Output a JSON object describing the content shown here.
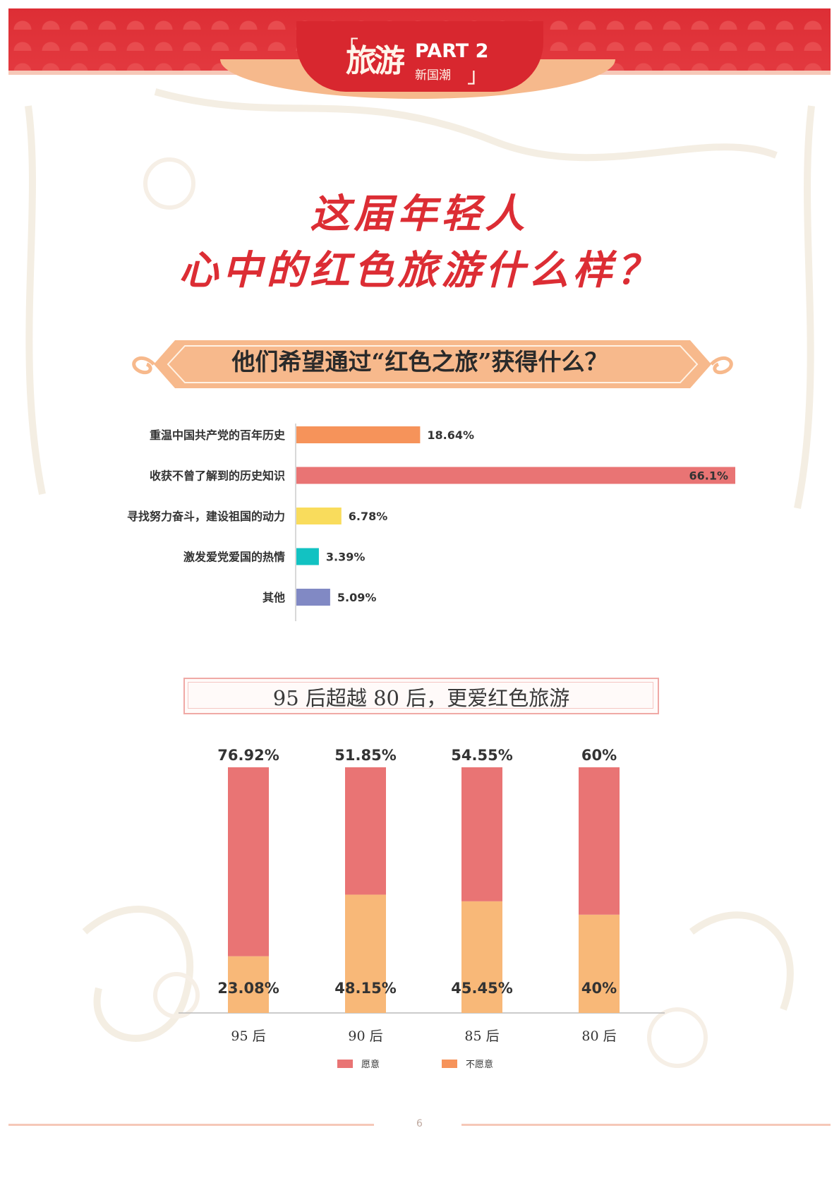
{
  "header": {
    "logo_main": "旅游",
    "logo_part": "PART 2",
    "logo_sub": "新国潮",
    "bracket_open": "「",
    "bracket_close": "」"
  },
  "title": {
    "line1": "这届年轻人",
    "line2": "心中的红色旅游什么样？"
  },
  "section1": {
    "heading": "他们希望通过“红色之旅”获得什么？"
  },
  "section2": {
    "heading": "95 后超越 80 后，更爱红色旅游"
  },
  "page_number": "6",
  "colors": {
    "accent_red": "#dc2d34",
    "orange": "#f6935a",
    "salmon": "#e97474",
    "yellow": "#f9dc5c",
    "teal": "#12c2c2",
    "purple": "#8189c4",
    "willing": "#e97474",
    "unwilling": "#f8b878"
  },
  "chart_data": [
    {
      "type": "bar",
      "orientation": "horizontal",
      "categories": [
        "重温中国共产党的百年历史",
        "收获不曾了解到的历史知识",
        "寻找努力奋斗，建设祖国的动力",
        "激发爱党爱国的热情",
        "其他"
      ],
      "values": [
        18.64,
        66.1,
        6.78,
        3.39,
        5.09
      ],
      "value_labels": [
        "18.64%",
        "66.1%",
        "6.78%",
        "3.39%",
        "5.09%"
      ],
      "bar_colors": [
        "#f6935a",
        "#e97474",
        "#f9dc5c",
        "#12c2c2",
        "#8189c4"
      ],
      "unit": "%",
      "xlim": [
        0,
        66.1
      ]
    },
    {
      "type": "bar",
      "stacked": true,
      "categories": [
        "95 后",
        "90 后",
        "85 后",
        "80 后"
      ],
      "series": [
        {
          "name": "愿意",
          "values": [
            76.92,
            51.85,
            54.55,
            60
          ],
          "value_labels": [
            "76.92%",
            "51.85%",
            "54.55%",
            "60%"
          ],
          "color": "#e97474"
        },
        {
          "name": "不愿意",
          "values": [
            23.08,
            48.15,
            45.45,
            40
          ],
          "value_labels": [
            "23.08%",
            "48.15%",
            "45.45%",
            "40%"
          ],
          "color": "#f8b878"
        }
      ],
      "unit": "%",
      "ylim": [
        0,
        100
      ],
      "legend_position": "bottom"
    }
  ]
}
